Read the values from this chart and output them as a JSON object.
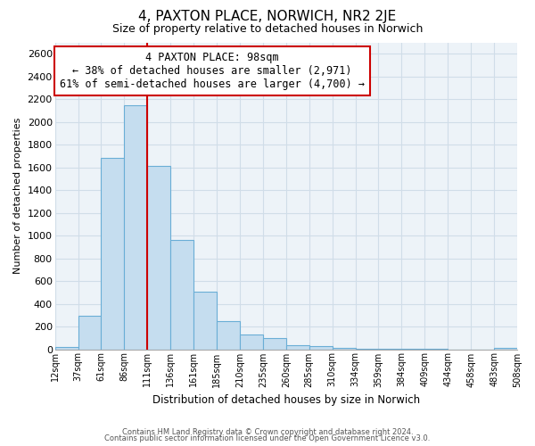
{
  "title": "4, PAXTON PLACE, NORWICH, NR2 2JE",
  "subtitle": "Size of property relative to detached houses in Norwich",
  "xlabel": "Distribution of detached houses by size in Norwich",
  "ylabel": "Number of detached properties",
  "bar_labels": [
    "12sqm",
    "37sqm",
    "61sqm",
    "86sqm",
    "111sqm",
    "136sqm",
    "161sqm",
    "185sqm",
    "210sqm",
    "235sqm",
    "260sqm",
    "285sqm",
    "310sqm",
    "334sqm",
    "359sqm",
    "384sqm",
    "409sqm",
    "434sqm",
    "458sqm",
    "483sqm",
    "508sqm"
  ],
  "bar_values": [
    20,
    295,
    1680,
    2150,
    1610,
    960,
    505,
    245,
    130,
    100,
    35,
    30,
    10,
    5,
    2,
    1,
    1,
    0,
    0,
    15,
    0
  ],
  "bar_color": "#c5ddef",
  "bar_edge_color": "#6aaed6",
  "vline_color": "#cc0000",
  "vline_x_index": 4,
  "ylim": [
    0,
    2700
  ],
  "yticks": [
    0,
    200,
    400,
    600,
    800,
    1000,
    1200,
    1400,
    1600,
    1800,
    2000,
    2200,
    2400,
    2600
  ],
  "annotation_title": "4 PAXTON PLACE: 98sqm",
  "annotation_line1": "← 38% of detached houses are smaller (2,971)",
  "annotation_line2": "61% of semi-detached houses are larger (4,700) →",
  "annotation_box_color": "#ffffff",
  "annotation_box_edge": "#cc0000",
  "footer1": "Contains HM Land Registry data © Crown copyright and database right 2024.",
  "footer2": "Contains public sector information licensed under the Open Government Licence v3.0.",
  "background_color": "#ffffff",
  "grid_color": "#d0dde8",
  "plot_bg_color": "#edf3f8"
}
